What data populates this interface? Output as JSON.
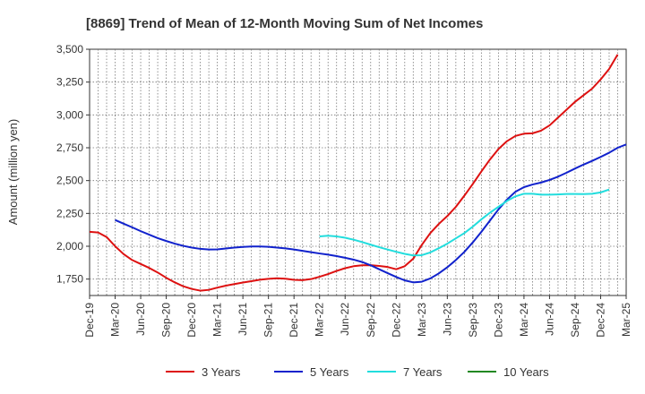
{
  "chart_data": {
    "type": "line",
    "title": "[8869]  Trend of Mean of 12-Month Moving Sum of Net Incomes",
    "ylabel": "Amount (million yen)",
    "xlabel": "",
    "ylim": [
      1625,
      3500
    ],
    "yticks": [
      1750,
      2000,
      2250,
      2500,
      2750,
      3000,
      3250,
      3500
    ],
    "ytick_labels": [
      "1,750",
      "2,000",
      "2,250",
      "2,500",
      "2,750",
      "3,000",
      "3,250",
      "3,500"
    ],
    "x_start": "Dec-19",
    "x_ticks": [
      "Dec-19",
      "Mar-20",
      "Jun-20",
      "Sep-20",
      "Dec-20",
      "Mar-21",
      "Jun-21",
      "Sep-21",
      "Dec-21",
      "Mar-22",
      "Jun-22",
      "Sep-22",
      "Dec-22",
      "Mar-23",
      "Jun-23",
      "Sep-23",
      "Dec-23",
      "Mar-24",
      "Jun-24",
      "Sep-24",
      "Dec-24",
      "Mar-25"
    ],
    "grid": true,
    "legend_position": "bottom",
    "series": [
      {
        "name": "3 Years",
        "color": "#dd1111",
        "start": "Dec-19",
        "values": [
          2110,
          2105,
          2070,
          2000,
          1940,
          1895,
          1865,
          1835,
          1800,
          1760,
          1725,
          1695,
          1675,
          1662,
          1668,
          1685,
          1700,
          1712,
          1724,
          1734,
          1745,
          1752,
          1756,
          1753,
          1744,
          1742,
          1750,
          1768,
          1788,
          1812,
          1833,
          1848,
          1855,
          1856,
          1850,
          1842,
          1825,
          1848,
          1905,
          2010,
          2100,
          2170,
          2230,
          2300,
          2385,
          2475,
          2570,
          2660,
          2740,
          2800,
          2840,
          2857,
          2860,
          2880,
          2920,
          2980,
          3040,
          3100,
          3150,
          3200,
          3270,
          3350,
          3460
        ]
      },
      {
        "name": "5 Years",
        "color": "#1122cc",
        "start": "Mar-20",
        "values": [
          2200,
          2172,
          2144,
          2115,
          2088,
          2062,
          2040,
          2020,
          2003,
          1990,
          1980,
          1975,
          1976,
          1983,
          1990,
          1995,
          1998,
          1998,
          1996,
          1990,
          1984,
          1975,
          1965,
          1955,
          1945,
          1936,
          1925,
          1912,
          1898,
          1880,
          1855,
          1825,
          1795,
          1766,
          1740,
          1725,
          1730,
          1755,
          1793,
          1840,
          1895,
          1957,
          2030,
          2110,
          2195,
          2280,
          2355,
          2415,
          2450,
          2470,
          2485,
          2505,
          2530,
          2560,
          2592,
          2622,
          2650,
          2680,
          2712,
          2750,
          2775
        ]
      },
      {
        "name": "7 Years",
        "color": "#22dddd",
        "start": "Mar-22",
        "values": [
          2075,
          2080,
          2075,
          2065,
          2050,
          2032,
          2012,
          1993,
          1975,
          1958,
          1942,
          1930,
          1932,
          1953,
          1985,
          2020,
          2060,
          2100,
          2150,
          2205,
          2255,
          2300,
          2345,
          2380,
          2400,
          2400,
          2393,
          2393,
          2395,
          2398,
          2398,
          2397,
          2400,
          2410,
          2432
        ]
      },
      {
        "name": "10 Years",
        "color": "#228822",
        "start": "Dec-24",
        "values": []
      }
    ]
  }
}
